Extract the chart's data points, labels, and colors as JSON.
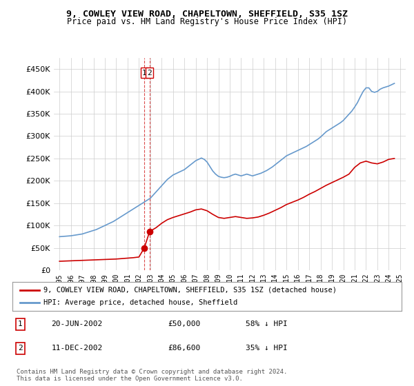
{
  "title_line1": "9, COWLEY VIEW ROAD, CHAPELTOWN, SHEFFIELD, S35 1SZ",
  "title_line2": "Price paid vs. HM Land Registry's House Price Index (HPI)",
  "legend_red": "9, COWLEY VIEW ROAD, CHAPELTOWN, SHEFFIELD, S35 1SZ (detached house)",
  "legend_blue": "HPI: Average price, detached house, Sheffield",
  "footnote": "Contains HM Land Registry data © Crown copyright and database right 2024.\nThis data is licensed under the Open Government Licence v3.0.",
  "transactions": [
    {
      "num": 1,
      "date": "20-JUN-2002",
      "price": 50000,
      "pct": "58% ↓ HPI",
      "x_year": 2002.47
    },
    {
      "num": 2,
      "date": "11-DEC-2002",
      "price": 86600,
      "pct": "35% ↓ HPI",
      "x_year": 2002.94
    }
  ],
  "ylim": [
    0,
    475000
  ],
  "xlim": [
    1994.5,
    2025.5
  ],
  "yticks": [
    0,
    50000,
    100000,
    150000,
    200000,
    250000,
    300000,
    350000,
    400000,
    450000
  ],
  "xtick_years": [
    1995,
    1996,
    1997,
    1998,
    1999,
    2000,
    2001,
    2002,
    2003,
    2004,
    2005,
    2006,
    2007,
    2008,
    2009,
    2010,
    2011,
    2012,
    2013,
    2014,
    2015,
    2016,
    2017,
    2018,
    2019,
    2020,
    2021,
    2022,
    2023,
    2024,
    2025
  ],
  "red_color": "#cc0000",
  "blue_color": "#6699cc",
  "dashed_color": "#cc0000",
  "grid_color": "#cccccc",
  "background_color": "#ffffff",
  "hpi_years": [
    1995,
    1995.25,
    1995.5,
    1995.75,
    1996,
    1996.25,
    1996.5,
    1996.75,
    1997,
    1997.25,
    1997.5,
    1997.75,
    1998,
    1998.25,
    1998.5,
    1998.75,
    1999,
    1999.25,
    1999.5,
    1999.75,
    2000,
    2000.25,
    2000.5,
    2000.75,
    2001,
    2001.25,
    2001.5,
    2001.75,
    2002,
    2002.25,
    2002.5,
    2002.75,
    2003,
    2003.25,
    2003.5,
    2003.75,
    2004,
    2004.25,
    2004.5,
    2004.75,
    2005,
    2005.25,
    2005.5,
    2005.75,
    2006,
    2006.25,
    2006.5,
    2006.75,
    2007,
    2007.25,
    2007.5,
    2007.75,
    2008,
    2008.25,
    2008.5,
    2008.75,
    2009,
    2009.25,
    2009.5,
    2009.75,
    2010,
    2010.25,
    2010.5,
    2010.75,
    2011,
    2011.25,
    2011.5,
    2011.75,
    2012,
    2012.25,
    2012.5,
    2012.75,
    2013,
    2013.25,
    2013.5,
    2013.75,
    2014,
    2014.25,
    2014.5,
    2014.75,
    2015,
    2015.25,
    2015.5,
    2015.75,
    2016,
    2016.25,
    2016.5,
    2016.75,
    2017,
    2017.25,
    2017.5,
    2017.75,
    2018,
    2018.25,
    2018.5,
    2018.75,
    2019,
    2019.25,
    2019.5,
    2019.75,
    2020,
    2020.25,
    2020.5,
    2020.75,
    2021,
    2021.25,
    2021.5,
    2021.75,
    2022,
    2022.25,
    2022.5,
    2022.75,
    2023,
    2023.25,
    2023.5,
    2023.75,
    2024,
    2024.25,
    2024.5
  ],
  "hpi_values": [
    75000,
    75500,
    76000,
    76500,
    77000,
    78000,
    79000,
    80000,
    81000,
    83000,
    85000,
    87000,
    89000,
    91000,
    94000,
    97000,
    100000,
    103000,
    106000,
    109000,
    113000,
    117000,
    121000,
    125000,
    129000,
    133000,
    137000,
    141000,
    145000,
    149000,
    153000,
    157000,
    161000,
    168000,
    175000,
    182000,
    189000,
    196000,
    203000,
    208000,
    213000,
    216000,
    219000,
    222000,
    225000,
    230000,
    235000,
    240000,
    245000,
    248000,
    251000,
    248000,
    242000,
    232000,
    222000,
    215000,
    210000,
    208000,
    207000,
    208000,
    210000,
    213000,
    215000,
    213000,
    211000,
    213000,
    215000,
    213000,
    211000,
    213000,
    215000,
    217000,
    220000,
    223000,
    227000,
    231000,
    236000,
    241000,
    246000,
    251000,
    256000,
    259000,
    262000,
    265000,
    268000,
    271000,
    274000,
    277000,
    281000,
    285000,
    289000,
    293000,
    298000,
    304000,
    310000,
    314000,
    318000,
    322000,
    326000,
    330000,
    335000,
    342000,
    349000,
    356000,
    365000,
    375000,
    388000,
    400000,
    408000,
    408000,
    400000,
    398000,
    400000,
    405000,
    408000,
    410000,
    412000,
    415000,
    418000
  ],
  "red_years": [
    1995,
    1995.5,
    1996,
    1996.5,
    1997,
    1997.5,
    1998,
    1998.5,
    1999,
    1999.5,
    2000,
    2000.5,
    2001,
    2001.5,
    2002,
    2002.47,
    2002.94,
    2003.5,
    2004,
    2004.5,
    2005,
    2005.5,
    2006,
    2006.5,
    2007,
    2007.5,
    2008,
    2008.5,
    2009,
    2009.5,
    2010,
    2010.5,
    2011,
    2011.5,
    2012,
    2012.5,
    2013,
    2013.5,
    2014,
    2014.5,
    2015,
    2015.5,
    2016,
    2016.5,
    2017,
    2017.5,
    2018,
    2018.5,
    2019,
    2019.5,
    2020,
    2020.5,
    2021,
    2021.5,
    2022,
    2022.5,
    2023,
    2023.5,
    2024,
    2024.5
  ],
  "red_values": [
    20000,
    20500,
    21000,
    21500,
    22000,
    22500,
    23000,
    23500,
    24000,
    24500,
    25000,
    26000,
    27000,
    28000,
    29500,
    50000,
    86600,
    95000,
    105000,
    113000,
    118000,
    122000,
    126000,
    130000,
    135000,
    137000,
    133000,
    125000,
    118000,
    116000,
    118000,
    120000,
    118000,
    116000,
    117000,
    119000,
    123000,
    128000,
    134000,
    140000,
    147000,
    152000,
    157000,
    163000,
    170000,
    176000,
    183000,
    190000,
    196000,
    202000,
    208000,
    215000,
    230000,
    240000,
    244000,
    240000,
    238000,
    242000,
    248000,
    250000
  ]
}
